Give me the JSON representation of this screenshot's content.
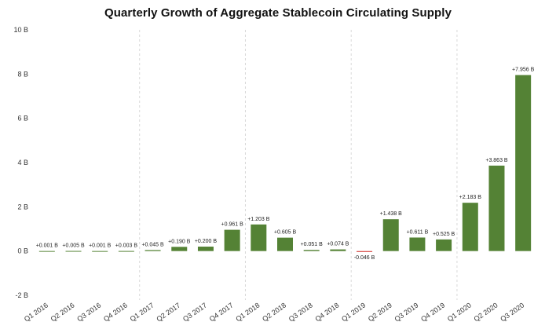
{
  "chart_data": {
    "type": "bar",
    "title": "Quarterly Growth of Aggregate Stablecoin Circulating Supply",
    "xlabel": "",
    "ylabel": "",
    "ylim": [
      -2,
      10
    ],
    "yticks": [
      -2,
      0,
      2,
      4,
      6,
      8,
      10
    ],
    "ytick_labels": [
      "-2 B",
      "0 B",
      "2 B",
      "4 B",
      "6 B",
      "8 B",
      "10 B"
    ],
    "categories": [
      "Q1 2016",
      "Q2 2016",
      "Q3 2016",
      "Q4 2016",
      "Q1 2017",
      "Q2 2017",
      "Q3 2017",
      "Q4 2017",
      "Q1 2018",
      "Q2 2018",
      "Q3 2018",
      "Q4 2018",
      "Q1 2019",
      "Q2 2019",
      "Q3 2019",
      "Q4 2019",
      "Q1 2020",
      "Q2 2020",
      "Q3 2020"
    ],
    "values": [
      0.001,
      0.005,
      0.001,
      0.003,
      0.045,
      0.19,
      0.2,
      0.961,
      1.203,
      0.605,
      0.051,
      0.074,
      -0.046,
      1.438,
      0.611,
      0.525,
      2.183,
      3.863,
      7.956
    ],
    "data_labels": [
      "+0.001 B",
      "+0.005 B",
      "+0.001 B",
      "+0.003 B",
      "+0.045 B",
      "+0.190 B",
      "+0.200 B",
      "+0.961 B",
      "+1.203 B",
      "+0.605 B",
      "+0.051 B",
      "+0.074 B",
      "-0.046 B",
      "+1.438 B",
      "+0.611 B",
      "+0.525 B",
      "+2.183 B",
      "+3.863 B",
      "+7.956 B"
    ],
    "grid": false,
    "year_separators": true,
    "colors": {
      "positive": "#548235",
      "negative": "#d9534f"
    }
  }
}
